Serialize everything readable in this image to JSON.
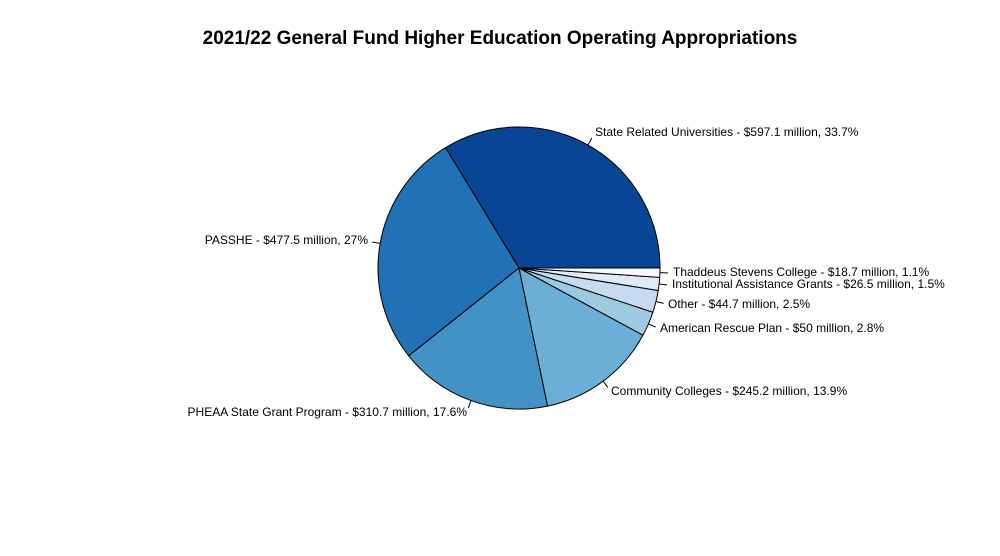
{
  "chart_data": {
    "type": "pie",
    "title": "2021/22 General Fund Higher Education Operating Appropriations",
    "slices": [
      {
        "label": "State Related Universities - $597.1 million, 33.7%",
        "value": 597.1,
        "percent": 33.7,
        "color": "#084594"
      },
      {
        "label": "PASSHE - $477.5 million, 27%",
        "value": 477.5,
        "percent": 27.0,
        "color": "#2171b5"
      },
      {
        "label": "PHEAA State Grant Program - $310.7 million, 17.6%",
        "value": 310.7,
        "percent": 17.6,
        "color": "#4292c6"
      },
      {
        "label": "Community Colleges - $245.2 million, 13.9%",
        "value": 245.2,
        "percent": 13.9,
        "color": "#6baed6"
      },
      {
        "label": "American Rescue Plan - $50 million, 2.8%",
        "value": 50.0,
        "percent": 2.8,
        "color": "#9ecae1"
      },
      {
        "label": "Other - $44.7 million, 2.5%",
        "value": 44.7,
        "percent": 2.5,
        "color": "#c6dbef"
      },
      {
        "label": "Institutional Assistance Grants - $26.5 million, 1.5%",
        "value": 26.5,
        "percent": 1.5,
        "color": "#deebf7"
      },
      {
        "label": "Thaddeus Stevens College - $18.7 million, 1.1%",
        "value": 18.7,
        "percent": 1.1,
        "color": "#f7fbff"
      }
    ]
  }
}
